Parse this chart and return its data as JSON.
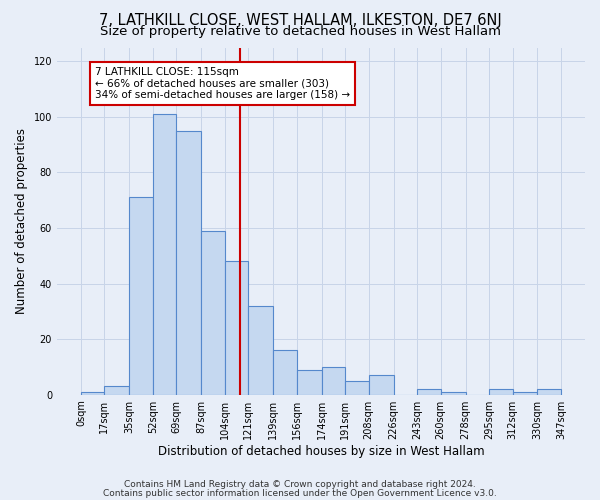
{
  "title": "7, LATHKILL CLOSE, WEST HALLAM, ILKESTON, DE7 6NJ",
  "subtitle": "Size of property relative to detached houses in West Hallam",
  "xlabel": "Distribution of detached houses by size in West Hallam",
  "ylabel": "Number of detached properties",
  "bin_edges": [
    0,
    17,
    35,
    52,
    69,
    87,
    104,
    121,
    139,
    156,
    174,
    191,
    208,
    226,
    243,
    260,
    278,
    295,
    312,
    330,
    347
  ],
  "bar_heights": [
    1,
    3,
    71,
    101,
    95,
    59,
    48,
    32,
    16,
    9,
    10,
    5,
    7,
    0,
    2,
    1,
    0,
    2,
    1,
    2
  ],
  "bar_color": "#c5d8f0",
  "bar_edge_color": "#5588cc",
  "vline_x": 115,
  "vline_color": "#cc0000",
  "annotation_text": "7 LATHKILL CLOSE: 115sqm\n← 66% of detached houses are smaller (303)\n34% of semi-detached houses are larger (158) →",
  "annotation_box_color": "#ffffff",
  "annotation_box_edge": "#cc0000",
  "ylim": [
    0,
    125
  ],
  "yticks": [
    0,
    20,
    40,
    60,
    80,
    100,
    120
  ],
  "grid_color": "#c8d4e8",
  "background_color": "#e8eef8",
  "footnote1": "Contains HM Land Registry data © Crown copyright and database right 2024.",
  "footnote2": "Contains public sector information licensed under the Open Government Licence v3.0.",
  "title_fontsize": 10.5,
  "subtitle_fontsize": 9.5,
  "xlabel_fontsize": 8.5,
  "ylabel_fontsize": 8.5,
  "tick_fontsize": 7,
  "footnote_fontsize": 6.5,
  "annot_fontsize": 7.5
}
